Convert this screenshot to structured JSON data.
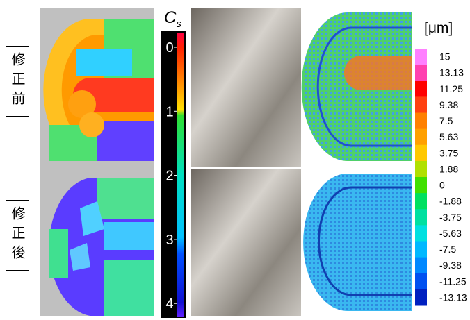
{
  "labels": {
    "before": "修正前",
    "after": "修正後"
  },
  "cs_colorbar": {
    "title": "C",
    "title_sub": "s",
    "ticks": [
      "0",
      "1",
      "2",
      "3",
      "4"
    ]
  },
  "um_colorbar": {
    "unit": "[μm]",
    "labels": [
      "15",
      "13.13",
      "11.25",
      "9.38",
      "7.5",
      "5.63",
      "3.75",
      "1.88",
      "0",
      "-1.88",
      "-3.75",
      "-5.63",
      "-7.5",
      "-9.38",
      "-11.25",
      "-13.13"
    ]
  }
}
